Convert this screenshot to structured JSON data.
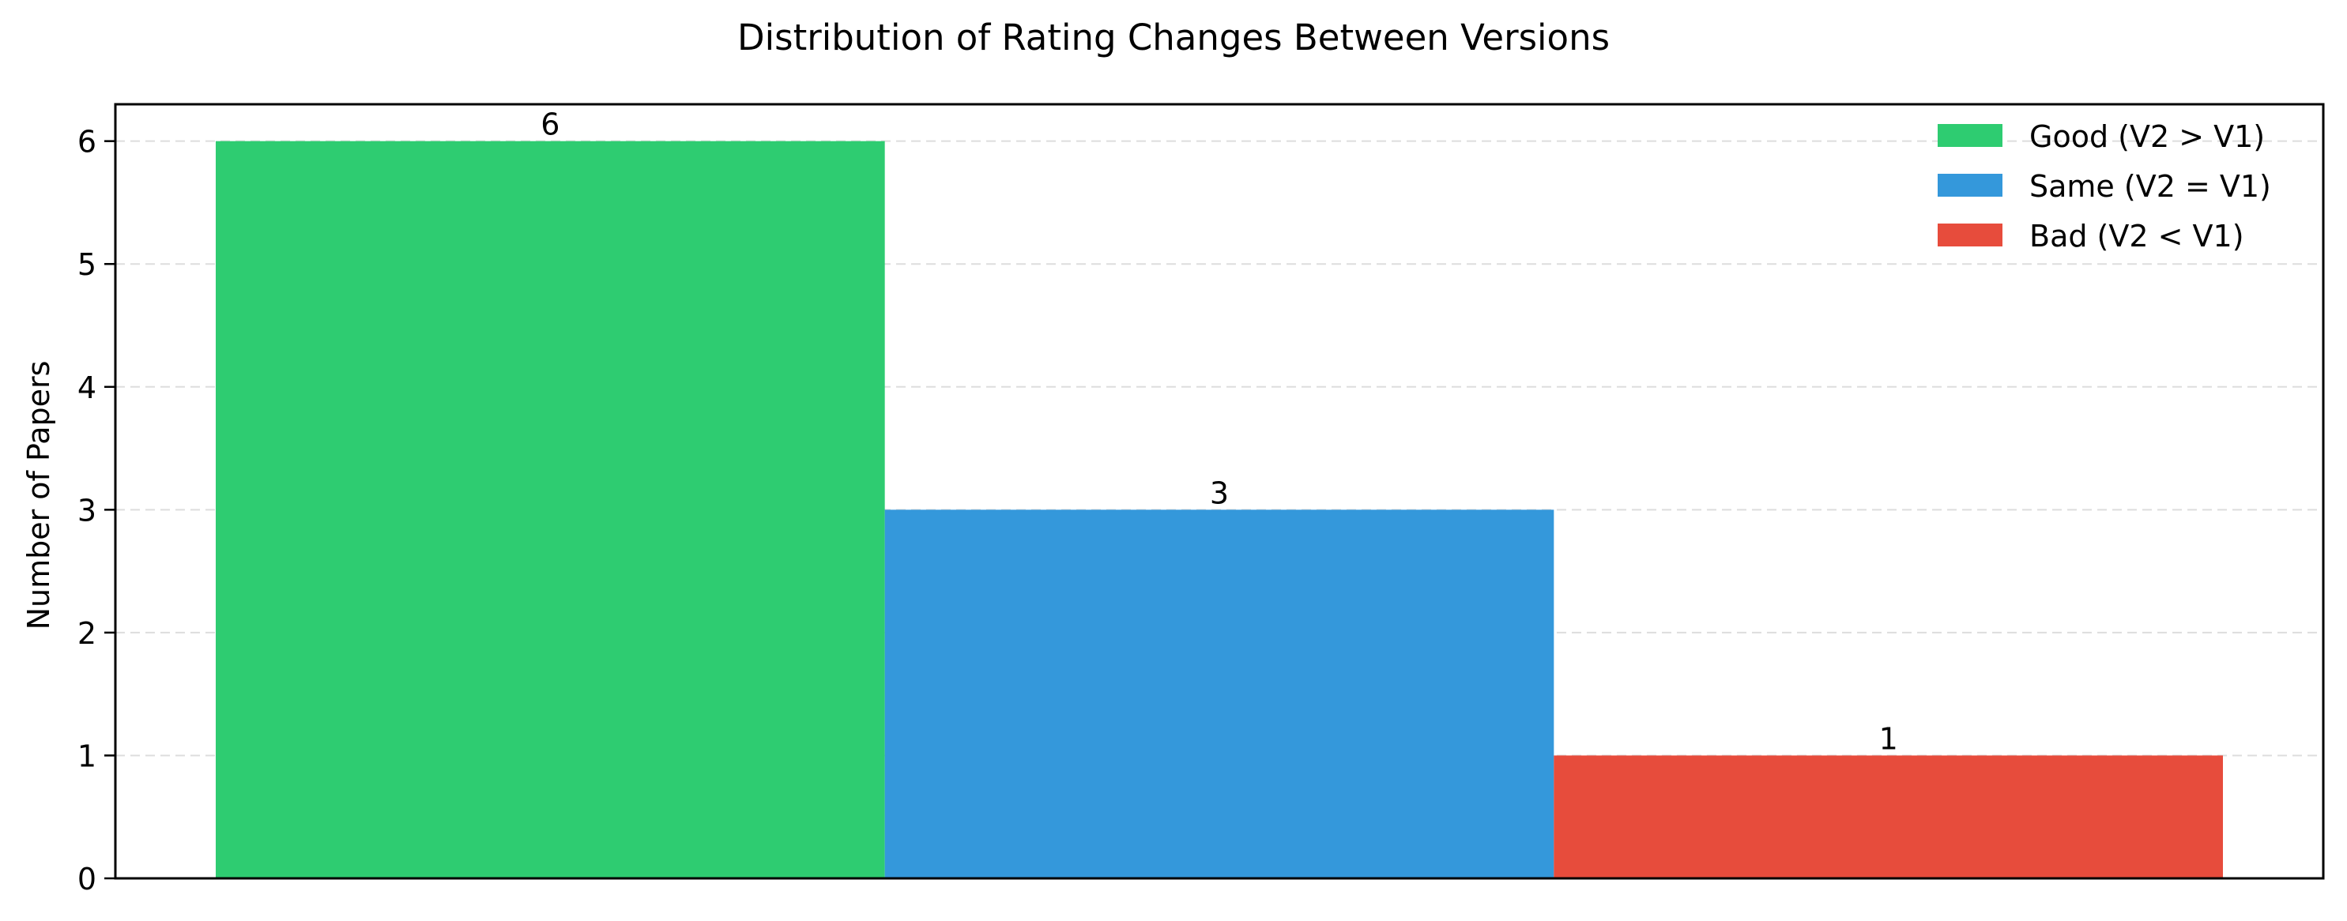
{
  "chart_data": {
    "type": "bar",
    "title": "Distribution of Rating Changes Between Versions",
    "xlabel": "",
    "ylabel": "Number of Papers",
    "categories": [
      "Good (V2 > V1)",
      "Same (V2 = V1)",
      "Bad (V2 < V1)"
    ],
    "values": [
      6,
      3,
      1
    ],
    "colors": [
      "#2ecc71",
      "#3498db",
      "#e74c3c"
    ],
    "yticks": [
      "0",
      "1",
      "2",
      "3",
      "4",
      "5",
      "6"
    ],
    "ylim": [
      0,
      6.3
    ],
    "grid": "horizontal-dashed",
    "legend_position": "top-right",
    "show_x_ticks": false
  }
}
